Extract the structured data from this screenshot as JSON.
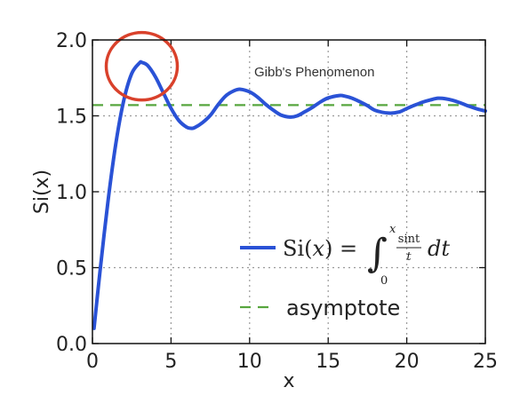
{
  "chart_data": {
    "type": "line",
    "title": "",
    "xlabel": "x",
    "ylabel": "Si(x)",
    "xlim": [
      0,
      25
    ],
    "ylim": [
      0.0,
      2.0
    ],
    "grid": true,
    "x_ticks": [
      "0",
      "5",
      "10",
      "15",
      "20",
      "25"
    ],
    "y_ticks": [
      "0.0",
      "0.5",
      "1.0",
      "1.5",
      "2.0"
    ],
    "legend_position": "lower-right",
    "annotation": "Gibb's Phenomenon",
    "highlight_circle": {
      "x": 3.14,
      "y": 1.85,
      "color": "#d9412b"
    },
    "series": [
      {
        "name": "Si(x) = ∫₀ˣ (sin t / t) dt",
        "style": "solid",
        "color": "#2a52d6",
        "x": [
          0.1,
          0.5,
          1,
          1.5,
          2,
          2.5,
          3,
          3.14,
          3.5,
          4,
          4.5,
          5,
          5.5,
          6,
          6.28,
          6.5,
          7,
          7.5,
          8,
          8.5,
          9,
          9.42,
          10,
          10.5,
          11,
          11.5,
          12,
          12.57,
          13,
          13.5,
          14,
          14.5,
          15,
          15.71,
          16,
          16.5,
          17,
          17.5,
          18,
          18.85,
          19.5,
          20,
          20.5,
          21,
          21.5,
          21.99,
          22.5,
          23,
          23.5,
          24,
          24.5,
          25
        ],
        "y": [
          0.1,
          0.493,
          0.946,
          1.325,
          1.605,
          1.779,
          1.849,
          1.852,
          1.833,
          1.758,
          1.654,
          1.55,
          1.469,
          1.425,
          1.418,
          1.422,
          1.455,
          1.503,
          1.574,
          1.633,
          1.665,
          1.675,
          1.658,
          1.624,
          1.578,
          1.538,
          1.505,
          1.492,
          1.499,
          1.526,
          1.556,
          1.591,
          1.618,
          1.634,
          1.631,
          1.617,
          1.594,
          1.567,
          1.536,
          1.518,
          1.525,
          1.548,
          1.57,
          1.59,
          1.605,
          1.616,
          1.612,
          1.6,
          1.582,
          1.562,
          1.545,
          1.532
        ]
      },
      {
        "name": "asymptote",
        "style": "dashed",
        "color": "#57a63f",
        "x": [
          0,
          25
        ],
        "y": [
          1.5708,
          1.5708
        ]
      }
    ],
    "legend": {
      "si_label": "Si(",
      "si_var": "x",
      "si_close": ") =",
      "integral": "∫",
      "upper": "x",
      "lower": "0",
      "frac_num": "sint",
      "frac_den": "t",
      "dt": "dt",
      "asymptote_label": "asymptote"
    }
  }
}
